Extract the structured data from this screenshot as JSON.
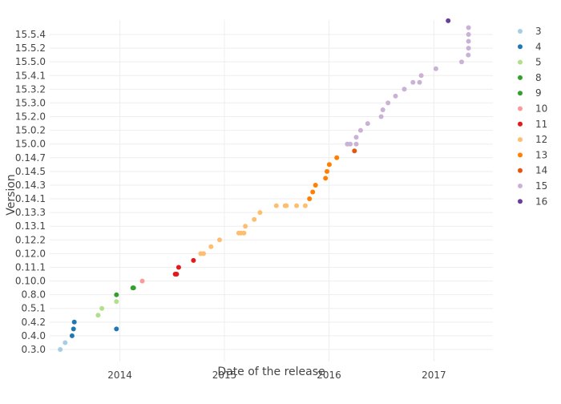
{
  "chart_data": {
    "type": "scatter",
    "title": "",
    "xlabel": "Date of the release",
    "ylabel": "Version",
    "x_ticks": [
      "2014",
      "2015",
      "2016",
      "2017"
    ],
    "xlim": [
      "2013-05-01",
      "2017-07-26"
    ],
    "y_categories": [
      "0.3.0",
      "0.4.0",
      "0.4.2",
      "0.5.1",
      "0.8.0",
      "0.10.0",
      "0.11.1",
      "0.12.0",
      "0.12.2",
      "0.13.1",
      "0.13.3",
      "0.14.1",
      "0.14.3",
      "0.14.5",
      "0.14.7",
      "15.0.0",
      "15.0.2",
      "15.2.0",
      "15.3.0",
      "15.3.2",
      "15.4.1",
      "15.5.0",
      "15.5.2",
      "15.5.4"
    ],
    "grid": true,
    "legend_position": "right",
    "series": [
      {
        "name": "3",
        "color": "#a6cee3",
        "points": [
          [
            "2013-06-07",
            0.0
          ],
          [
            "2013-06-24",
            0.5
          ]
        ]
      },
      {
        "name": "4",
        "color": "#1f78b4",
        "points": [
          [
            "2013-07-18",
            1.0
          ],
          [
            "2013-07-23",
            1.5
          ],
          [
            "2013-12-20",
            1.5
          ],
          [
            "2013-07-26",
            2.0
          ]
        ]
      },
      {
        "name": "5",
        "color": "#b2df8a",
        "points": [
          [
            "2013-10-17",
            2.5
          ],
          [
            "2013-10-30",
            3.0
          ],
          [
            "2013-12-20",
            3.5
          ]
        ]
      },
      {
        "name": "8",
        "color": "#33a02c",
        "points": [
          [
            "2013-12-20",
            4.0
          ]
        ]
      },
      {
        "name": "9",
        "color": "#33a02c",
        "points": [
          [
            "2014-02-15",
            4.5
          ],
          [
            "2014-02-18",
            4.5
          ]
        ]
      },
      {
        "name": "10",
        "color": "#fb9a99",
        "points": [
          [
            "2014-03-20",
            5.0
          ]
        ]
      },
      {
        "name": "11",
        "color": "#e31a1c",
        "points": [
          [
            "2014-07-13",
            5.5
          ],
          [
            "2014-07-18",
            5.5
          ],
          [
            "2014-07-25",
            6.0
          ],
          [
            "2014-09-15",
            6.5
          ]
        ]
      },
      {
        "name": "12",
        "color": "#fdbf6f",
        "points": [
          [
            "2014-10-10",
            7.0
          ],
          [
            "2014-10-20",
            7.0
          ],
          [
            "2014-11-15",
            7.5
          ],
          [
            "2014-12-15",
            8.0
          ],
          [
            "2015-02-20",
            8.5
          ],
          [
            "2015-02-28",
            8.5
          ],
          [
            "2015-03-10",
            8.5
          ],
          [
            "2015-03-15",
            9.0
          ],
          [
            "2015-04-15",
            9.5
          ],
          [
            "2015-05-05",
            10.0
          ],
          [
            "2015-07-01",
            10.5
          ],
          [
            "2015-08-01",
            10.5
          ],
          [
            "2015-08-05",
            10.5
          ],
          [
            "2015-09-10",
            10.5
          ],
          [
            "2015-10-10",
            10.5
          ]
        ]
      },
      {
        "name": "13",
        "color": "#ff7f00",
        "points": [
          [
            "2015-10-25",
            11.0
          ],
          [
            "2015-11-05",
            11.5
          ],
          [
            "2015-11-15",
            12.0
          ],
          [
            "2015-12-20",
            12.5
          ],
          [
            "2015-12-25",
            13.0
          ],
          [
            "2016-01-02",
            13.5
          ],
          [
            "2016-01-28",
            14.0
          ]
        ]
      },
      {
        "name": "14",
        "color": "#e6550d",
        "points": [
          [
            "2016-03-30",
            14.5
          ]
        ]
      },
      {
        "name": "15",
        "color": "#cab2d6",
        "points": [
          [
            "2016-03-05",
            15.0
          ],
          [
            "2016-03-15",
            15.0
          ],
          [
            "2016-04-05",
            15.0
          ],
          [
            "2016-04-05",
            15.5
          ],
          [
            "2016-04-20",
            16.0
          ],
          [
            "2016-05-15",
            16.5
          ],
          [
            "2016-07-01",
            17.0
          ],
          [
            "2016-07-07",
            17.5
          ],
          [
            "2016-07-25",
            18.0
          ],
          [
            "2016-08-20",
            18.5
          ],
          [
            "2016-09-20",
            19.0
          ],
          [
            "2016-10-20",
            19.5
          ],
          [
            "2016-11-12",
            19.5
          ],
          [
            "2016-11-18",
            20.0
          ],
          [
            "2017-01-08",
            20.5
          ],
          [
            "2017-04-08",
            21.0
          ],
          [
            "2017-05-01",
            21.5
          ],
          [
            "2017-05-02",
            22.0
          ],
          [
            "2017-05-02",
            22.5
          ],
          [
            "2017-05-02",
            23.0
          ],
          [
            "2017-05-02",
            23.5
          ]
        ]
      },
      {
        "name": "16",
        "color": "#6a3d9a",
        "points": [
          [
            "2017-02-20",
            24.0
          ]
        ]
      }
    ]
  }
}
